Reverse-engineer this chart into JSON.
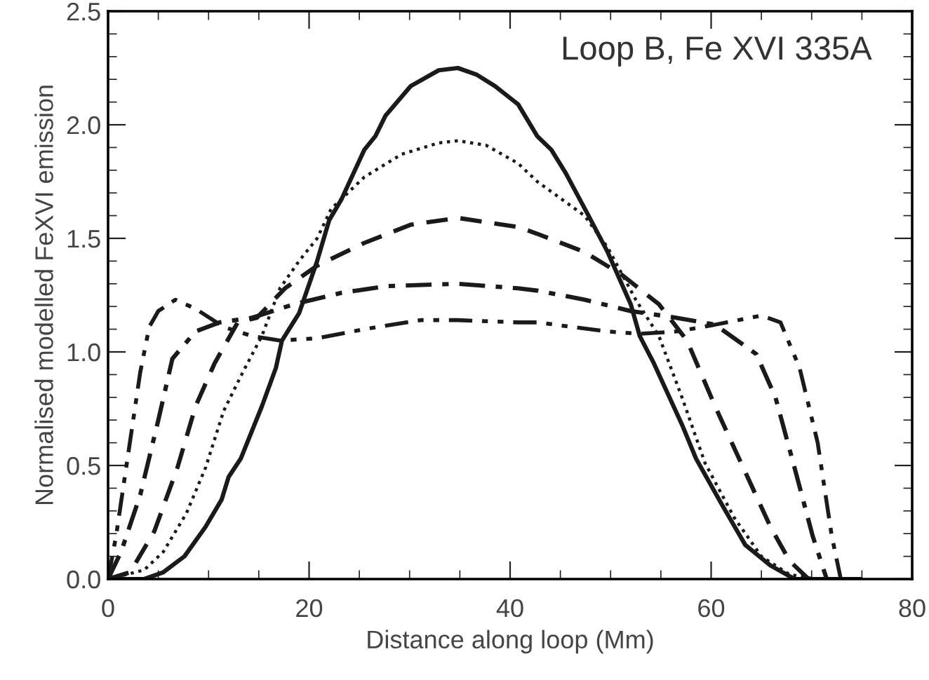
{
  "chart_data": {
    "type": "line",
    "xlabel": "Distance along loop (Mm)",
    "ylabel": "Normalised modelled FeXVI emission",
    "annotations": [
      "Loop B, Fe XVI 335A"
    ],
    "xlim": [
      0,
      80
    ],
    "ylim": [
      0,
      2.5
    ],
    "xticks": [
      0,
      {
        "value": 5,
        "label": null
      },
      {
        "value": 10,
        "label": null
      },
      {
        "value": 15,
        "label": null
      },
      20,
      {
        "value": 25,
        "label": null
      },
      {
        "value": 30,
        "label": null
      },
      {
        "value": 35,
        "label": null
      },
      40,
      {
        "value": 45,
        "label": null
      },
      {
        "value": 50,
        "label": null
      },
      {
        "value": 55,
        "label": null
      },
      60,
      {
        "value": 65,
        "label": null
      },
      {
        "value": 70,
        "label": null
      },
      {
        "value": 75,
        "label": null
      },
      80
    ],
    "yticks": [
      {
        "value": 0,
        "label": "0.0"
      },
      {
        "value": 0.1,
        "label": null
      },
      {
        "value": 0.2,
        "label": null
      },
      {
        "value": 0.3,
        "label": null
      },
      {
        "value": 0.4,
        "label": null
      },
      0.5,
      {
        "value": 0.6,
        "label": null
      },
      {
        "value": 0.7,
        "label": null
      },
      {
        "value": 0.8,
        "label": null
      },
      {
        "value": 0.9,
        "label": null
      },
      {
        "value": 1,
        "label": "1.0"
      },
      {
        "value": 1.1,
        "label": null
      },
      {
        "value": 1.2,
        "label": null
      },
      {
        "value": 1.3,
        "label": null
      },
      {
        "value": 1.4,
        "label": null
      },
      1.5,
      {
        "value": 1.6,
        "label": null
      },
      {
        "value": 1.7,
        "label": null
      },
      {
        "value": 1.8,
        "label": null
      },
      {
        "value": 1.9,
        "label": null
      },
      {
        "value": 2,
        "label": "2.0"
      },
      {
        "value": 2.1,
        "label": null
      },
      {
        "value": 2.2,
        "label": null
      },
      {
        "value": 2.3,
        "label": null
      },
      {
        "value": 2.4,
        "label": null
      },
      2.5
    ],
    "grid": false,
    "series": [
      {
        "color": "#1a1a1a",
        "line_style": "solid",
        "x": [
          0,
          3.6,
          5.5,
          7.6,
          9.7,
          11.3,
          12,
          13.2,
          15.3,
          16.7,
          17.3,
          19,
          20.8,
          22,
          23.2,
          25.5,
          26.6,
          27.6,
          30.1,
          32.9,
          34.8,
          36.7,
          38.5,
          40.8,
          42.7,
          44.1,
          45.5,
          47.8,
          49.7,
          52,
          52.9,
          54.3,
          57.1,
          58.5,
          61.3,
          63.4,
          65.9,
          68.3,
          74.8
        ],
        "values": [
          0,
          0,
          0.03,
          0.1,
          0.23,
          0.35,
          0.45,
          0.53,
          0.76,
          0.93,
          1.05,
          1.17,
          1.4,
          1.58,
          1.67,
          1.89,
          1.95,
          2.04,
          2.17,
          2.24,
          2.25,
          2.22,
          2.17,
          2.09,
          1.95,
          1.89,
          1.79,
          1.6,
          1.44,
          1.21,
          1.07,
          0.95,
          0.68,
          0.53,
          0.31,
          0.15,
          0.06,
          0,
          0
        ]
      },
      {
        "color": "#1a1a1a",
        "line_style": "dotted",
        "x": [
          0,
          3.6,
          5.5,
          7.8,
          9.7,
          11.5,
          13.4,
          15.3,
          17.1,
          19,
          20.8,
          22.2,
          25.5,
          29.2,
          32.9,
          34.8,
          37.6,
          40.8,
          42.7,
          47.4,
          49.7,
          52.5,
          54.8,
          57.1,
          59.4,
          62.3,
          65,
          67.8,
          70.5
        ],
        "values": [
          0,
          0.04,
          0.12,
          0.29,
          0.49,
          0.74,
          0.91,
          1.07,
          1.28,
          1.4,
          1.5,
          1.63,
          1.77,
          1.87,
          1.92,
          1.93,
          1.91,
          1.83,
          1.75,
          1.6,
          1.46,
          1.23,
          1.07,
          0.8,
          0.51,
          0.27,
          0.1,
          0.02,
          0
        ]
      },
      {
        "color": "#1a1a1a",
        "line_style": "dashed",
        "x": [
          0,
          2.2,
          4.6,
          6.9,
          8.7,
          10.6,
          12.9,
          14.8,
          17.6,
          20.8,
          25.5,
          30.1,
          34.8,
          40.8,
          42.7,
          47.4,
          51.1,
          54.8,
          57.6,
          60.4,
          63.2,
          65.9,
          67.8,
          69.7
        ],
        "values": [
          0,
          0.03,
          0.21,
          0.49,
          0.76,
          0.95,
          1.13,
          1.15,
          1.28,
          1.38,
          1.48,
          1.56,
          1.59,
          1.55,
          1.52,
          1.44,
          1.34,
          1.21,
          1.05,
          0.76,
          0.49,
          0.23,
          0.08,
          0
        ]
      },
      {
        "color": "#1a1a1a",
        "line_style": "dashdot",
        "x": [
          0,
          1.3,
          3.2,
          5,
          6.4,
          8.7,
          11.1,
          14.3,
          18.5,
          23.2,
          27.8,
          34.8,
          40.8,
          42.7,
          47.4,
          52,
          56.6,
          60.4,
          64.5,
          66.4,
          68.3,
          70.1,
          71.5
        ],
        "values": [
          0,
          0.12,
          0.37,
          0.7,
          0.97,
          1.09,
          1.13,
          1.15,
          1.21,
          1.26,
          1.29,
          1.3,
          1.28,
          1.27,
          1.23,
          1.18,
          1.15,
          1.12,
          0.99,
          0.8,
          0.49,
          0.19,
          0
        ]
      },
      {
        "color": "#1a1a1a",
        "line_style": "dashdotdot",
        "x": [
          0,
          0.8,
          1.8,
          3.2,
          4.1,
          5,
          6.7,
          8.7,
          11.5,
          14.3,
          17.1,
          20.8,
          25.5,
          31.1,
          34.8,
          40.8,
          42.7,
          49.7,
          52.9,
          56.6,
          60.4,
          65,
          66.9,
          68.8,
          70.6,
          72,
          72.9
        ],
        "values": [
          0,
          0.19,
          0.49,
          0.91,
          1.11,
          1.18,
          1.23,
          1.19,
          1.11,
          1.07,
          1.05,
          1.06,
          1.1,
          1.14,
          1.14,
          1.13,
          1.13,
          1.09,
          1.08,
          1.09,
          1.12,
          1.16,
          1.13,
          0.93,
          0.6,
          0.19,
          0
        ]
      }
    ]
  }
}
